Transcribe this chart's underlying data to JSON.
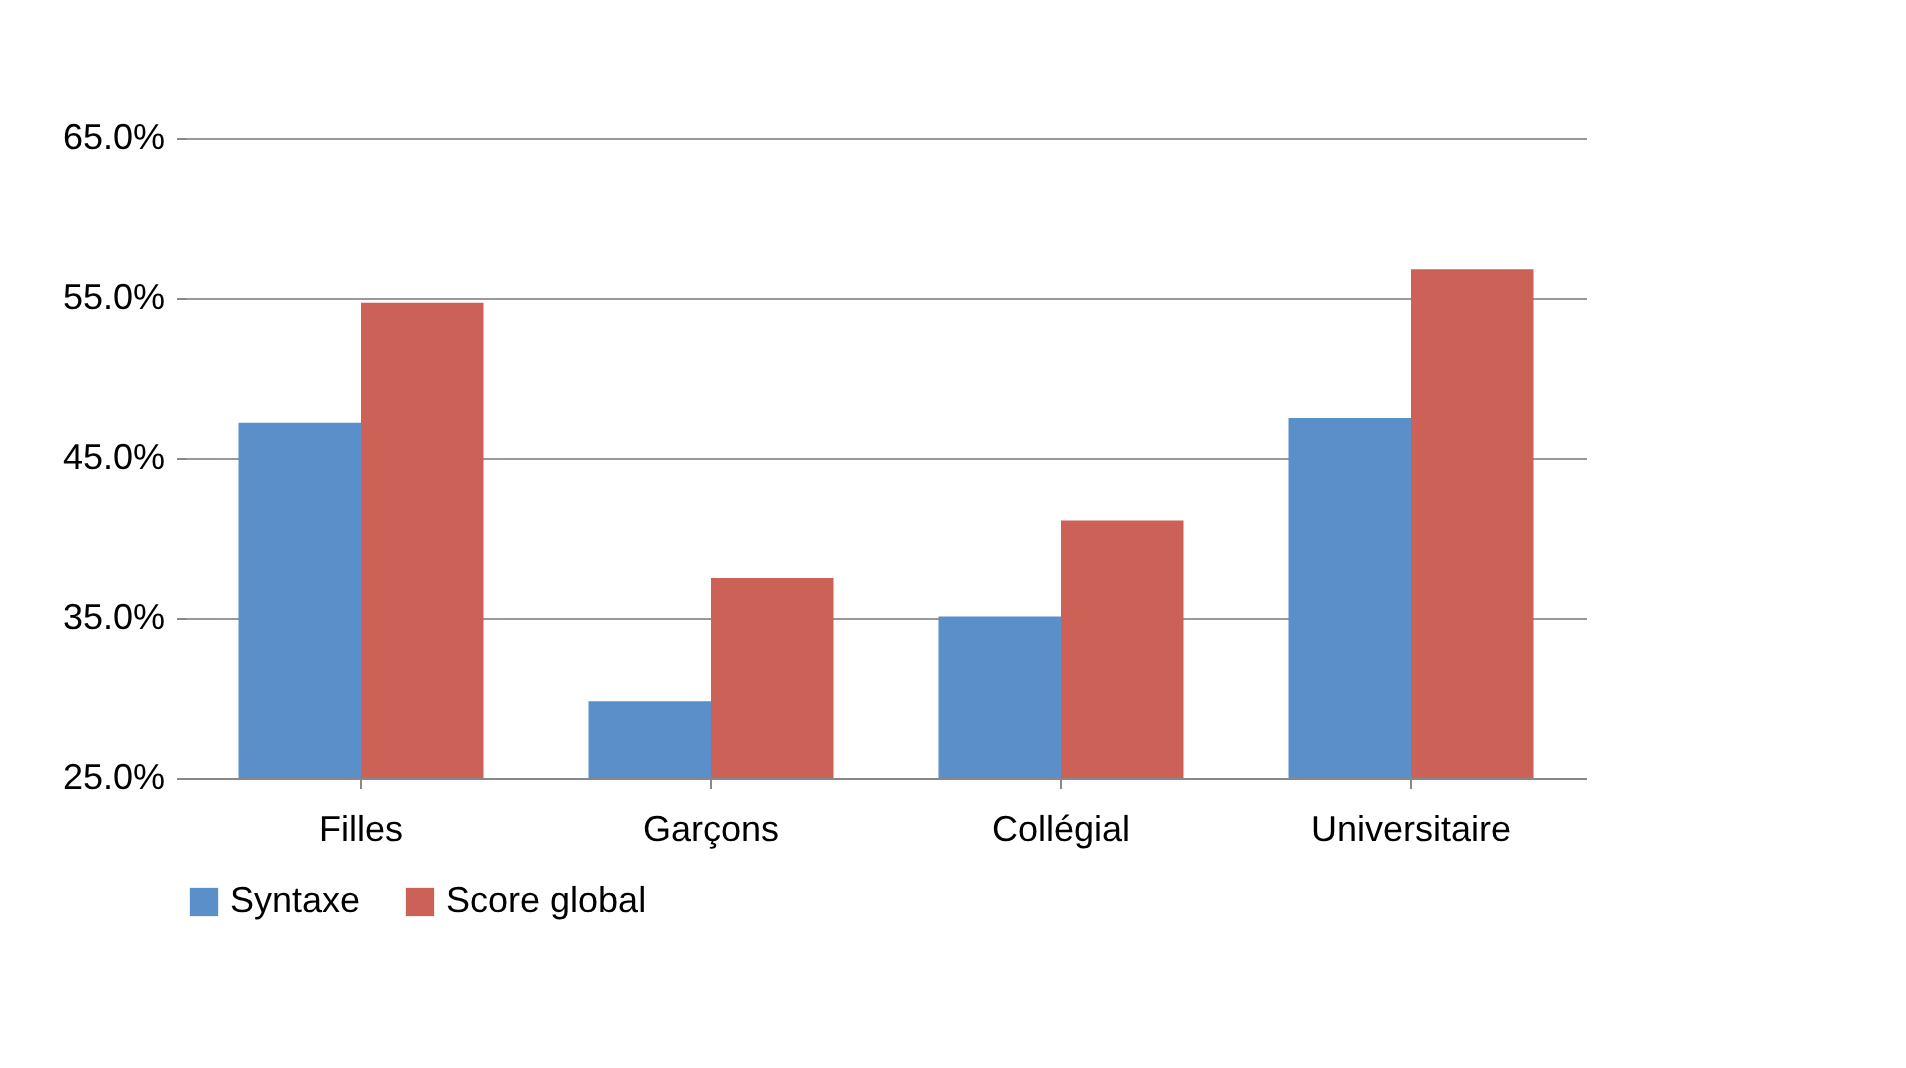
{
  "chart_data": {
    "type": "bar",
    "categories": [
      "Filles",
      "Garçons",
      "Collégial",
      "Universitaire"
    ],
    "series": [
      {
        "name": "Syntaxe",
        "color": "#5b8fc9",
        "values": [
          47.2,
          29.8,
          35.1,
          47.5
        ]
      },
      {
        "name": "Score global",
        "color": "#cc6158",
        "values": [
          54.7,
          37.5,
          41.1,
          56.8
        ]
      }
    ],
    "ylim": [
      25,
      65
    ],
    "yticks": [
      {
        "value": 25,
        "label": "25.0%"
      },
      {
        "value": 35,
        "label": "35.0%"
      },
      {
        "value": 45,
        "label": "45.0%"
      },
      {
        "value": 55,
        "label": "55.0%"
      },
      {
        "value": 65,
        "label": "65.0%"
      }
    ],
    "grid": "y",
    "legend": "bottom"
  }
}
